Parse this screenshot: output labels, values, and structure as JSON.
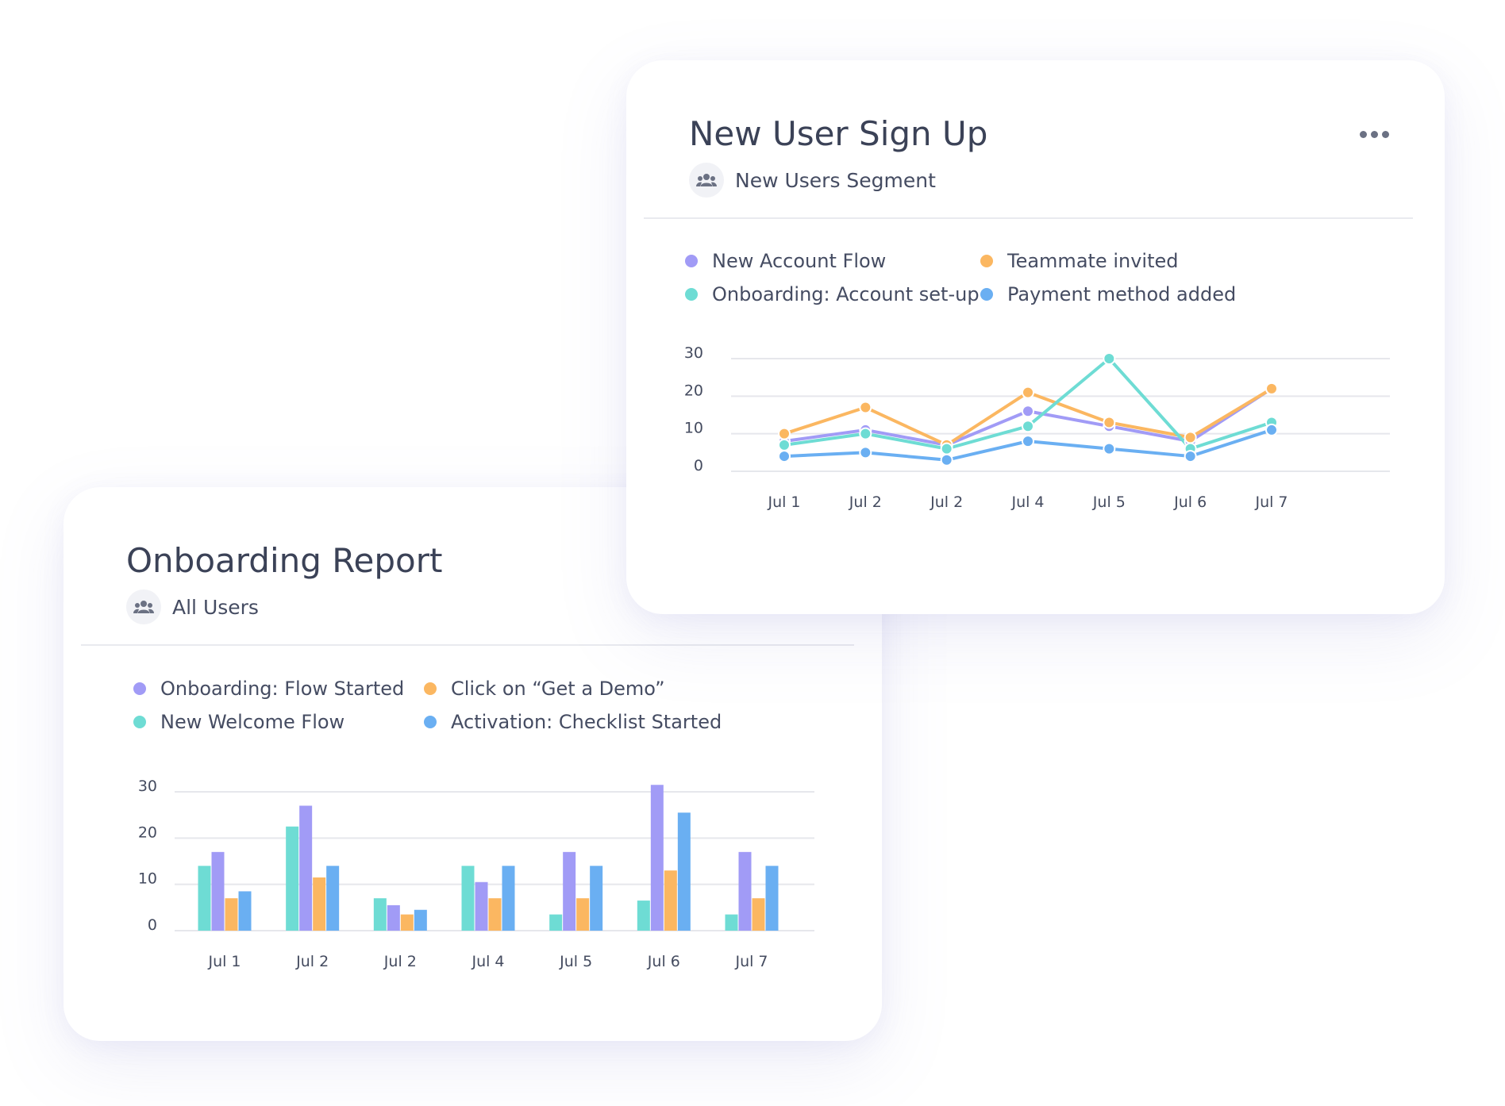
{
  "colors": {
    "purple": "#a19bf6",
    "orange": "#fbb761",
    "teal": "#6edcd4",
    "blue": "#6aaff2",
    "grid": "#e6e7ec"
  },
  "signup_card": {
    "title": "New User Sign Up",
    "segment_icon": "users-group-icon",
    "segment": "New Users Segment",
    "menu_icon": "more-horizontal-icon",
    "legend": [
      {
        "label": "New Account Flow",
        "color": "#a19bf6"
      },
      {
        "label": "Teammate invited",
        "color": "#fbb761"
      },
      {
        "label": "Onboarding: Account set-up",
        "color": "#6edcd4"
      },
      {
        "label": "Payment method added",
        "color": "#6aaff2"
      }
    ]
  },
  "onboarding_card": {
    "title": "Onboarding Report",
    "segment_icon": "users-group-icon",
    "segment": "All Users",
    "legend": [
      {
        "label": "Onboarding: Flow Started",
        "color": "#a19bf6"
      },
      {
        "label": "Click on “Get a Demo”",
        "color": "#fbb761"
      },
      {
        "label": "New Welcome Flow",
        "color": "#6edcd4"
      },
      {
        "label": "Activation: Checklist Started",
        "color": "#6aaff2"
      }
    ]
  },
  "chart_data": [
    {
      "type": "line",
      "title": "New User Sign Up",
      "categories": [
        "Jul 1",
        "Jul 2",
        "Jul 2",
        "Jul 4",
        "Jul 5",
        "Jul 6",
        "Jul 7"
      ],
      "yticks": [
        0,
        10,
        20,
        30
      ],
      "ylim": [
        0,
        30
      ],
      "grid": true,
      "legend_position": "top",
      "series": [
        {
          "name": "New Account Flow",
          "color": "#a19bf6",
          "values": [
            8,
            11,
            7,
            16,
            12,
            8,
            22
          ]
        },
        {
          "name": "Teammate invited",
          "color": "#fbb761",
          "values": [
            10,
            17,
            7,
            21,
            13,
            9,
            22
          ]
        },
        {
          "name": "Onboarding: Account set-up",
          "color": "#6edcd4",
          "values": [
            7,
            10,
            6,
            12,
            30,
            6,
            13
          ]
        },
        {
          "name": "Payment method added",
          "color": "#6aaff2",
          "values": [
            4,
            5,
            3,
            8,
            6,
            4,
            11
          ]
        }
      ]
    },
    {
      "type": "bar",
      "title": "Onboarding Report",
      "categories": [
        "Jul 1",
        "Jul 2",
        "Jul 2",
        "Jul 4",
        "Jul 5",
        "Jul 6",
        "Jul 7"
      ],
      "yticks": [
        0,
        10,
        20,
        30
      ],
      "ylim": [
        0,
        30
      ],
      "grid": true,
      "legend_position": "top",
      "series": [
        {
          "name": "New Welcome Flow",
          "color": "#6edcd4",
          "values": [
            14,
            22.5,
            7,
            14,
            3.5,
            6.5,
            3.5
          ]
        },
        {
          "name": "Onboarding: Flow Started",
          "color": "#a19bf6",
          "values": [
            17,
            27,
            5.5,
            10.5,
            17,
            31.5,
            17
          ]
        },
        {
          "name": "Click on “Get a Demo”",
          "color": "#fbb761",
          "values": [
            7,
            11.5,
            3.5,
            7,
            7,
            13,
            7
          ]
        },
        {
          "name": "Activation: Checklist Started",
          "color": "#6aaff2",
          "values": [
            8.5,
            14,
            4.5,
            14,
            14,
            25.5,
            14
          ]
        }
      ]
    }
  ]
}
